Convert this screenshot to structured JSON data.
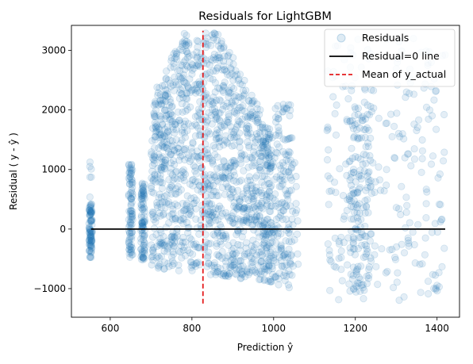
{
  "chart_data": {
    "type": "scatter",
    "title": "Residuals for LightGBM",
    "xlabel": "Prediction ŷ",
    "ylabel": "Residual ( y - ŷ )",
    "xlim": [
      505,
      1455
    ],
    "ylim": [
      -1480,
      3420
    ],
    "xticks": [
      600,
      800,
      1000,
      1200,
      1400
    ],
    "yticks": [
      -1000,
      0,
      1000,
      2000,
      3000
    ],
    "xtick_labels": [
      "600",
      "800",
      "1000",
      "1200",
      "1400"
    ],
    "ytick_labels": [
      "−1000",
      "0",
      "1000",
      "2000",
      "3000"
    ],
    "colors": {
      "scatter": "#1f77b4",
      "zero_line": "#000000",
      "mean_line": "#e41a1c"
    },
    "series": [
      {
        "name": "Residuals",
        "kind": "scatter",
        "alpha": 0.12,
        "clusters": [
          {
            "x_range": [
              548,
              556
            ],
            "y_range": [
              -480,
              420
            ],
            "n": 90
          },
          {
            "x_range": [
              548,
              556
            ],
            "y_range": [
              420,
              1280
            ],
            "n": 6
          },
          {
            "x_range": [
              645,
              655
            ],
            "y_range": [
              -480,
              1100
            ],
            "n": 90
          },
          {
            "x_range": [
              675,
              685
            ],
            "y_range": [
              -520,
              800
            ],
            "n": 90
          },
          {
            "x_range": [
              700,
              1000
            ],
            "y_range": [
              -900,
              3330
            ],
            "n": 1400,
            "core": true
          },
          {
            "x_range": [
              1000,
              1045
            ],
            "y_range": [
              -950,
              2100
            ],
            "n": 120
          },
          {
            "x_range": [
              1010,
              1060
            ],
            "y_range": [
              -1050,
              1200
            ],
            "n": 50
          },
          {
            "x_range": [
              1130,
              1420
            ],
            "y_range": [
              -1200,
              3200
            ],
            "n": 260
          },
          {
            "x_range": [
              1185,
              1240
            ],
            "y_range": [
              -1050,
              2100
            ],
            "n": 140
          }
        ]
      },
      {
        "name": "Residual=0 line",
        "kind": "line",
        "x": [
          553,
          1420
        ],
        "y": [
          0,
          0
        ]
      },
      {
        "name": "Mean of y_actual",
        "kind": "vline",
        "x": 827,
        "y_range": [
          -1250,
          3330
        ]
      }
    ],
    "legend": {
      "position": "top-right",
      "entries": [
        "Residuals",
        "Residual=0 line",
        "Mean of y_actual"
      ]
    }
  }
}
